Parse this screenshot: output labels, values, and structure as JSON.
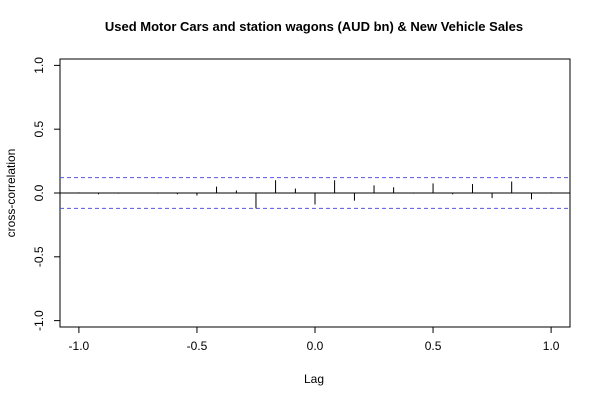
{
  "chart_data": {
    "type": "bar",
    "title": "Used Motor Cars and station wagons (AUD bn) & New Vehicle Sales",
    "xlabel": "Lag",
    "ylabel": "cross-correlation",
    "xlim": [
      -1.08,
      1.08
    ],
    "ylim": [
      -1.05,
      1.05
    ],
    "x_ticks": [
      -1.0,
      -0.5,
      0.0,
      0.5,
      1.0
    ],
    "x_tick_labels": [
      "-1.0",
      "-0.5",
      "0.0",
      "0.5",
      "1.0"
    ],
    "y_ticks": [
      -1.0,
      -0.5,
      0.0,
      0.5,
      1.0
    ],
    "y_tick_labels": [
      "-1.0",
      "-0.5",
      "0.0",
      "0.5",
      "1.0"
    ],
    "confidence_limits": [
      0.12,
      -0.12
    ],
    "confidence_color": "#5555dd",
    "bar_color": "#000000",
    "grid": false,
    "series": [
      {
        "x": [
          -1.0,
          -0.917,
          -0.833,
          -0.75,
          -0.667,
          -0.583,
          -0.5,
          -0.417,
          -0.333,
          -0.25,
          -0.167,
          -0.083,
          0.0,
          0.083,
          0.167,
          0.25,
          0.333,
          0.417,
          0.5,
          0.583,
          0.667,
          0.75,
          0.833,
          0.917,
          1.0
        ],
        "values": [
          0.005,
          -0.01,
          -0.005,
          0.0,
          -0.005,
          -0.01,
          -0.02,
          0.05,
          0.02,
          -0.12,
          0.1,
          0.035,
          -0.09,
          0.1,
          -0.06,
          0.06,
          0.045,
          -0.005,
          0.075,
          -0.01,
          0.07,
          -0.04,
          0.09,
          -0.05,
          0.005
        ]
      }
    ]
  }
}
